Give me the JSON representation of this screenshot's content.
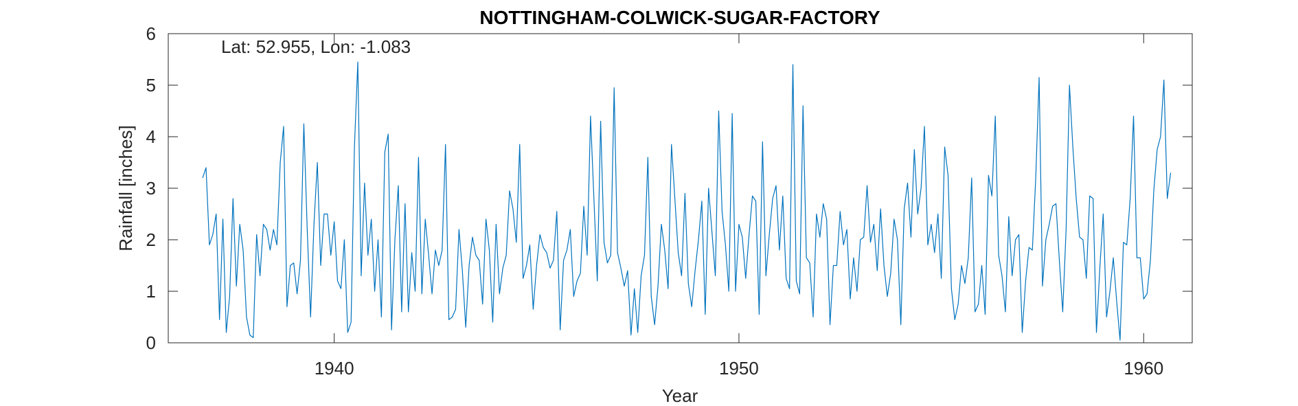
{
  "chart_data": {
    "type": "line",
    "title": "NOTTINGHAM-COLWICK-SUGAR-FACTORY",
    "annotation": "Lat: 52.955, Lon: -1.083",
    "xlabel": "Year",
    "ylabel": "Rainfall [inches]",
    "xlim": [
      1935.9,
      1961.2
    ],
    "ylim": [
      0,
      6
    ],
    "xticks": [
      1940,
      1950,
      1960
    ],
    "yticks": [
      0,
      1,
      2,
      3,
      4,
      5,
      6
    ],
    "grid": false,
    "box": true,
    "line_color": "#0072BD",
    "series": [
      {
        "x_start": 1936.75,
        "x_step": 0.0833333,
        "values": [
          3.2,
          3.4,
          1.9,
          2.1,
          2.5,
          0.45,
          2.4,
          0.2,
          0.9,
          2.8,
          1.1,
          2.3,
          1.8,
          0.5,
          0.15,
          0.1,
          2.1,
          1.3,
          2.3,
          2.2,
          1.8,
          2.2,
          1.9,
          3.5,
          4.2,
          0.7,
          1.5,
          1.55,
          0.95,
          1.6,
          4.25,
          2.2,
          0.5,
          2.3,
          3.5,
          1.5,
          2.5,
          2.5,
          1.7,
          2.35,
          1.2,
          1.05,
          2.0,
          0.2,
          0.4,
          3.8,
          5.45,
          1.3,
          3.1,
          1.7,
          2.4,
          1.0,
          2.0,
          0.5,
          3.7,
          4.05,
          0.25,
          2.0,
          3.05,
          0.6,
          2.7,
          0.6,
          1.75,
          1.0,
          3.6,
          0.95,
          2.4,
          1.7,
          0.95,
          1.8,
          1.5,
          1.8,
          3.85,
          0.45,
          0.5,
          0.65,
          2.2,
          1.4,
          0.3,
          1.5,
          2.05,
          1.7,
          1.6,
          0.75,
          2.4,
          1.8,
          0.4,
          2.3,
          0.95,
          1.45,
          1.7,
          2.95,
          2.6,
          1.95,
          3.85,
          1.25,
          1.5,
          1.9,
          0.65,
          1.5,
          2.1,
          1.85,
          1.75,
          1.45,
          1.6,
          2.55,
          0.25,
          1.6,
          1.8,
          2.2,
          0.9,
          1.2,
          1.35,
          2.65,
          1.7,
          4.4,
          2.8,
          1.2,
          4.3,
          1.95,
          1.55,
          1.7,
          4.95,
          1.75,
          1.45,
          1.1,
          1.4,
          0.15,
          1.05,
          0.2,
          1.3,
          1.7,
          3.6,
          0.9,
          0.35,
          1.1,
          2.3,
          1.8,
          1.05,
          3.85,
          2.8,
          1.75,
          1.3,
          2.9,
          1.15,
          0.7,
          1.4,
          2.0,
          2.75,
          0.55,
          3.0,
          2.15,
          1.3,
          4.5,
          2.55,
          1.9,
          1.0,
          4.45,
          1.0,
          2.3,
          2.05,
          1.25,
          2.1,
          2.85,
          2.75,
          0.55,
          3.9,
          1.3,
          2.1,
          2.8,
          3.05,
          1.8,
          2.85,
          1.25,
          1.05,
          5.4,
          1.2,
          0.95,
          4.6,
          1.65,
          1.55,
          0.5,
          2.5,
          2.05,
          2.7,
          2.4,
          0.35,
          1.5,
          1.5,
          2.55,
          1.9,
          2.2,
          0.85,
          1.65,
          1.0,
          2.0,
          2.05,
          3.05,
          1.95,
          2.3,
          1.4,
          2.6,
          1.5,
          0.9,
          1.35,
          2.4,
          2.0,
          0.35,
          2.6,
          3.1,
          2.05,
          3.75,
          2.5,
          3.0,
          4.2,
          1.9,
          2.3,
          1.75,
          2.5,
          1.25,
          3.8,
          3.25,
          1.05,
          0.45,
          0.75,
          1.5,
          1.15,
          1.65,
          3.2,
          0.6,
          0.75,
          1.5,
          0.55,
          3.25,
          2.85,
          4.4,
          1.7,
          1.3,
          0.6,
          2.45,
          1.3,
          2.0,
          2.1,
          0.2,
          1.2,
          1.85,
          1.8,
          3.2,
          5.15,
          1.1,
          2.0,
          2.3,
          2.65,
          2.7,
          1.6,
          0.6,
          2.2,
          5.0,
          3.8,
          2.8,
          2.05,
          2.0,
          1.25,
          2.85,
          2.8,
          0.2,
          1.45,
          2.5,
          0.5,
          1.0,
          1.65,
          0.8,
          0.05,
          1.95,
          1.9,
          2.8,
          4.4,
          1.65,
          1.65,
          0.85,
          0.95,
          1.6,
          2.95,
          3.75,
          4.0,
          5.1,
          2.8,
          3.3
        ]
      }
    ]
  }
}
